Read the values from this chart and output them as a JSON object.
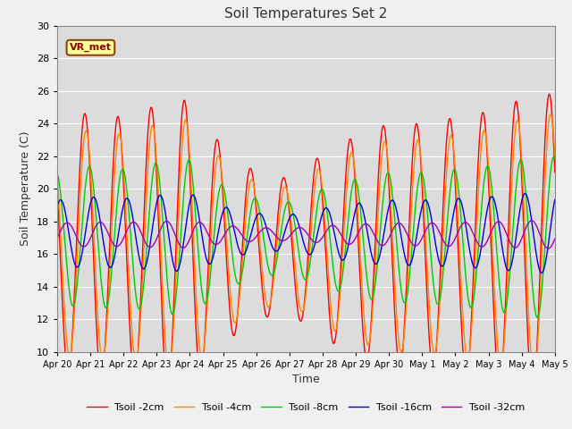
{
  "title": "Soil Temperatures Set 2",
  "xlabel": "Time",
  "ylabel": "Soil Temperature (C)",
  "ylim": [
    10,
    30
  ],
  "annotation": "VR_met",
  "fig_bg_color": "#f0f0f0",
  "plot_bg_color": "#dcdcdc",
  "series": [
    {
      "label": "Tsoil -2cm",
      "color": "#ff0000",
      "amplitude": 7.5,
      "mean": 16.5,
      "phase_days": 0.0,
      "phase_lag": 0.58
    },
    {
      "label": "Tsoil -4cm",
      "color": "#ff8800",
      "amplitude": 6.5,
      "mean": 16.5,
      "phase_days": 0.0,
      "phase_lag": 0.62
    },
    {
      "label": "Tsoil -8cm",
      "color": "#00cc00",
      "amplitude": 4.0,
      "mean": 17.0,
      "phase_days": 0.0,
      "phase_lag": 0.72
    },
    {
      "label": "Tsoil -16cm",
      "color": "#0000dd",
      "amplitude": 2.0,
      "mean": 17.3,
      "phase_days": 0.0,
      "phase_lag": 0.85
    },
    {
      "label": "Tsoil -32cm",
      "color": "#aa00aa",
      "amplitude": 0.7,
      "mean": 17.2,
      "phase_days": 0.0,
      "phase_lag": 1.05
    }
  ],
  "x_tick_labels": [
    "Apr 20",
    "Apr 21",
    "Apr 22",
    "Apr 23",
    "Apr 24",
    "Apr 25",
    "Apr 26",
    "Apr 27",
    "Apr 28",
    "Apr 29",
    "Apr 30",
    "May 1",
    "May 2",
    "May 3",
    "May 4",
    "May 5"
  ],
  "grid_color": "#ffffff",
  "n_points": 720,
  "amp_envelope": [
    1.0,
    1.1,
    1.05,
    1.15,
    1.2,
    0.8,
    0.6,
    0.55,
    0.75,
    0.9,
    1.0,
    1.0,
    1.05,
    1.1,
    1.2,
    1.25
  ]
}
